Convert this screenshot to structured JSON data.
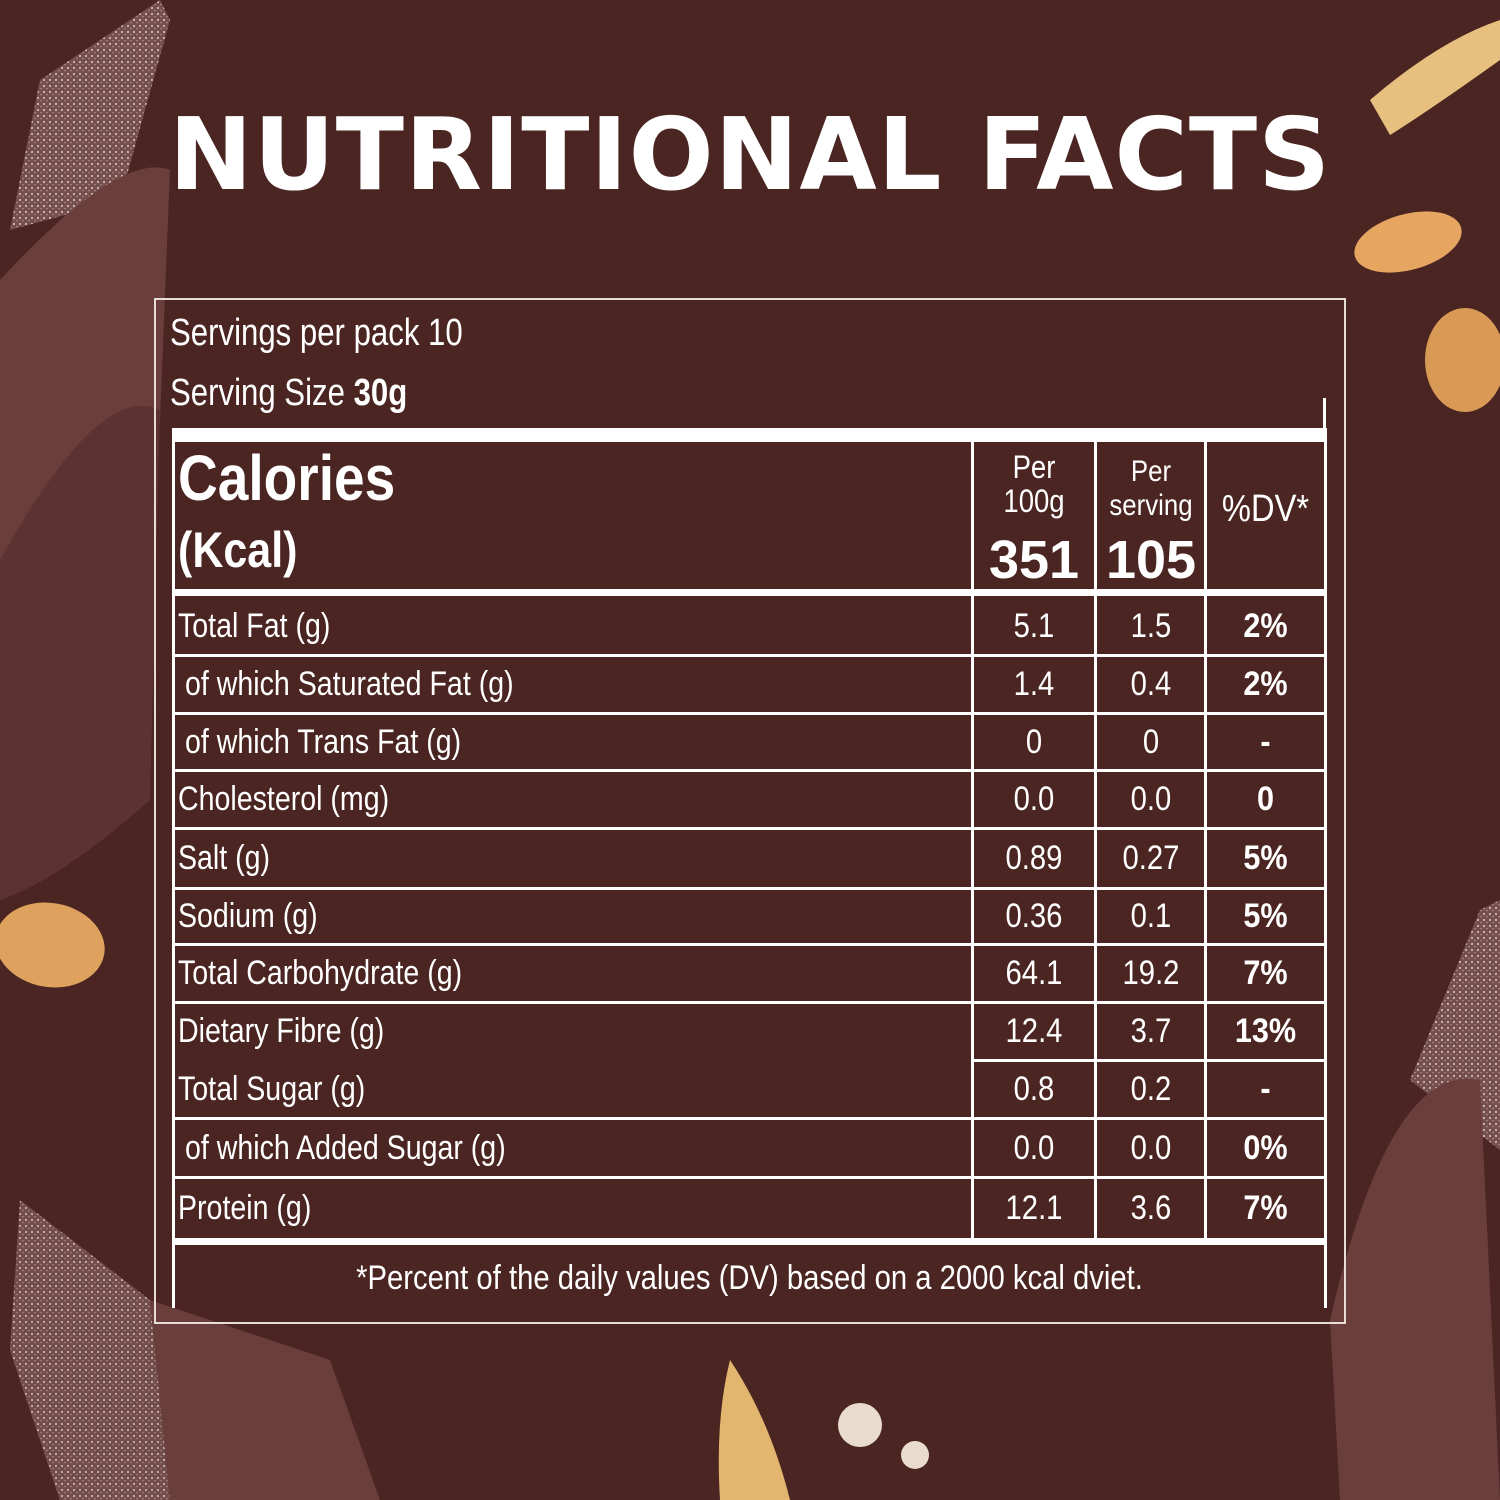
{
  "title": "NUTRITIONAL FACTS",
  "servings_per_pack": "Servings per pack 10",
  "serving_size_label": "Serving Size",
  "serving_size_value": "30g",
  "calories": {
    "label": "Calories",
    "unit": "(Kcal)",
    "per100_header_1": "Per",
    "per100_header_2": "100g",
    "perserv_header_1": "Per",
    "perserv_header_2": "serving",
    "dv_header": "%DV*",
    "per100_value": "351",
    "perserv_value": "105"
  },
  "rows": [
    {
      "label": "Total Fat (g)",
      "indent": false,
      "per100": "5.1",
      "perserv": "1.5",
      "dv": "2%"
    },
    {
      "label": "of which Saturated Fat (g)",
      "indent": true,
      "per100": "1.4",
      "perserv": "0.4",
      "dv": "2%"
    },
    {
      "label": "of which Trans Fat (g)",
      "indent": true,
      "per100": "0",
      "perserv": "0",
      "dv": "-"
    },
    {
      "label": "Cholesterol (mg)",
      "indent": false,
      "per100": "0.0",
      "perserv": "0.0",
      "dv": "0"
    },
    {
      "label": "Salt (g)",
      "indent": false,
      "per100": "0.89",
      "perserv": "0.27",
      "dv": "5%"
    },
    {
      "label": "Sodium (g)",
      "indent": false,
      "per100": "0.36",
      "perserv": "0.1",
      "dv": "5%"
    },
    {
      "label": "Total Carbohydrate (g)",
      "indent": false,
      "per100": "64.1",
      "perserv": "19.2",
      "dv": "7%"
    },
    {
      "label": "Dietary Fibre (g)",
      "indent": false,
      "per100": "12.4",
      "perserv": "3.7",
      "dv": "13%"
    },
    {
      "label": "Total Sugar (g)",
      "indent": false,
      "per100": "0.8",
      "perserv": "0.2",
      "dv": "-"
    },
    {
      "label": "of which Added Sugar (g)",
      "indent": true,
      "per100": "0.0",
      "perserv": "0.0",
      "dv": "0%"
    },
    {
      "label": "Protein (g)",
      "indent": false,
      "per100": "12.1",
      "perserv": "3.6",
      "dv": "7%"
    }
  ],
  "footnote": "*Percent of the daily values (DV) based on a 2000 kcal dviet.",
  "colors": {
    "background": "#4a2522",
    "text": "#ffffff"
  }
}
